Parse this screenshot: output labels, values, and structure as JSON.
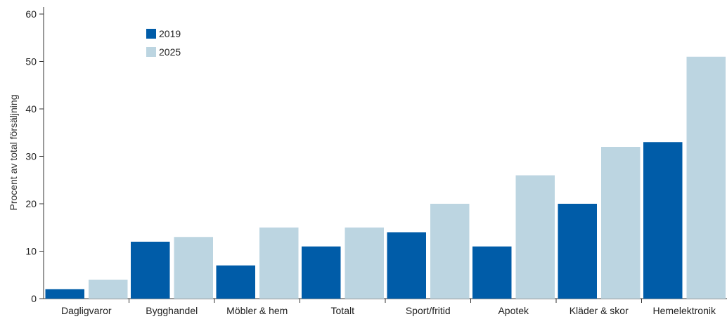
{
  "chart_data": {
    "type": "bar",
    "title": "",
    "xlabel": "",
    "ylabel": "Procent av total försäljning",
    "ylim": [
      0,
      60
    ],
    "yticks": [
      0,
      10,
      20,
      30,
      40,
      50,
      60
    ],
    "grid": false,
    "legend_position": "top-left",
    "categories": [
      "Dagligvaror",
      "Bygghandel",
      "Möbler & hem",
      "Totalt",
      "Sport/fritid",
      "Apotek",
      "Kläder & skor",
      "Hemelektronik"
    ],
    "series": [
      {
        "name": "2019",
        "color": "#005ca8",
        "values": [
          2,
          12,
          7,
          11,
          14,
          11,
          20,
          33
        ]
      },
      {
        "name": "2025",
        "color": "#bcd5e1",
        "values": [
          4,
          13,
          15,
          15,
          20,
          26,
          32,
          51
        ]
      }
    ]
  }
}
